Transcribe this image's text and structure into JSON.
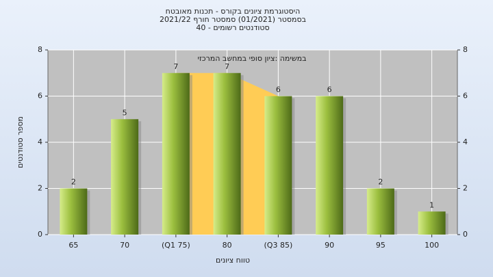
{
  "chart_data": {
    "type": "bar",
    "title": [
      "היסטוגרמת ציונים בקורס - תכנות מאובטח",
      "בסמסטר (01/2021) סמסטר חורף 2021/22",
      "סטודנטים רשומים - 40"
    ],
    "annotation": "במשימה :ציון סופי במחשב המרכזי",
    "x_label": "טווח ציונים",
    "y_label": "מספר סטודנטים",
    "categories": [
      "65",
      "70",
      "(Q1 75)",
      "80",
      "(Q3 85)",
      "90",
      "95",
      "100"
    ],
    "values": [
      2,
      5,
      7,
      7,
      6,
      6,
      2,
      1
    ],
    "color": "#9cbf3f",
    "ylim": [
      0,
      8
    ],
    "yticks": [
      0,
      2,
      4,
      6,
      8
    ],
    "grid": true
  }
}
